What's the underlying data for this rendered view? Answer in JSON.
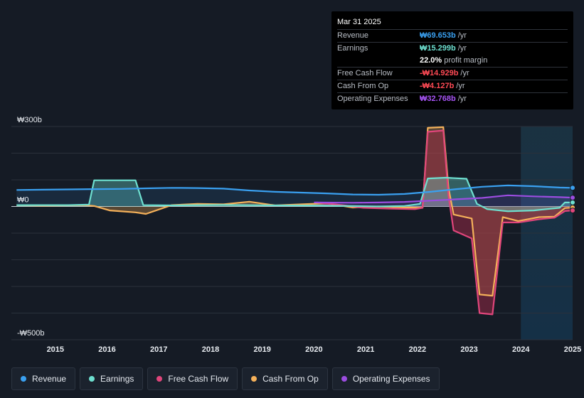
{
  "tooltip": {
    "date": "Mar 31 2025",
    "rows": [
      {
        "label": "Revenue",
        "value": "₩69.653b",
        "unit": "/yr",
        "color": "#3aa0f0"
      },
      {
        "label": "Earnings",
        "value": "₩15.299b",
        "unit": "/yr",
        "color": "#6ee0d0"
      },
      {
        "label": "",
        "value": "22.0%",
        "unit": "profit margin",
        "color": "#ffffff"
      },
      {
        "label": "Free Cash Flow",
        "value": "-₩14.929b",
        "unit": "/yr",
        "color": "#ff4a55"
      },
      {
        "label": "Cash From Op",
        "value": "-₩4.127b",
        "unit": "/yr",
        "color": "#ff4a55"
      },
      {
        "label": "Operating Expenses",
        "value": "₩32.768b",
        "unit": "/yr",
        "color": "#a855f7"
      }
    ]
  },
  "legend": [
    {
      "label": "Revenue",
      "color": "#3aa0f0"
    },
    {
      "label": "Earnings",
      "color": "#6ee0d0"
    },
    {
      "label": "Free Cash Flow",
      "color": "#e0457b"
    },
    {
      "label": "Cash From Op",
      "color": "#f5b15a"
    },
    {
      "label": "Operating Expenses",
      "color": "#9b4de0"
    }
  ],
  "chart_data": {
    "type": "area",
    "ylim": [
      -500,
      300
    ],
    "y_ticks": [
      {
        "value": 300,
        "label": "₩300b"
      },
      {
        "value": 0,
        "label": "₩0"
      },
      {
        "value": -500,
        "label": "-₩500b"
      }
    ],
    "xlim": [
      2014.4,
      2025.25
    ],
    "x_ticks": [
      "2015",
      "2016",
      "2017",
      "2018",
      "2019",
      "2020",
      "2021",
      "2022",
      "2023",
      "2024",
      "2025"
    ],
    "forecast_start": 2024.25,
    "grid": true,
    "series": [
      {
        "name": "Revenue",
        "color": "#3aa0f0",
        "points": [
          [
            2014.5,
            62
          ],
          [
            2015.0,
            63
          ],
          [
            2015.5,
            64
          ],
          [
            2016.0,
            65
          ],
          [
            2016.5,
            66
          ],
          [
            2017.0,
            68
          ],
          [
            2017.5,
            70
          ],
          [
            2018.0,
            69
          ],
          [
            2018.5,
            67
          ],
          [
            2019.0,
            60
          ],
          [
            2019.5,
            55
          ],
          [
            2020.0,
            52
          ],
          [
            2020.5,
            49
          ],
          [
            2021.0,
            45
          ],
          [
            2021.5,
            44
          ],
          [
            2022.0,
            47
          ],
          [
            2022.5,
            55
          ],
          [
            2023.0,
            65
          ],
          [
            2023.5,
            74
          ],
          [
            2024.0,
            79
          ],
          [
            2024.5,
            76
          ],
          [
            2025.0,
            71
          ],
          [
            2025.25,
            70
          ]
        ]
      },
      {
        "name": "Earnings",
        "color": "#6ee0d0",
        "points": [
          [
            2014.5,
            5
          ],
          [
            2015.5,
            5
          ],
          [
            2015.9,
            7
          ],
          [
            2016.0,
            98
          ],
          [
            2016.8,
            98
          ],
          [
            2016.95,
            5
          ],
          [
            2017.5,
            4
          ],
          [
            2018.5,
            6
          ],
          [
            2019.5,
            4
          ],
          [
            2020.5,
            3
          ],
          [
            2021.5,
            0
          ],
          [
            2022.0,
            2
          ],
          [
            2022.3,
            10
          ],
          [
            2022.45,
            105
          ],
          [
            2022.8,
            108
          ],
          [
            2023.2,
            104
          ],
          [
            2023.4,
            10
          ],
          [
            2023.6,
            -10
          ],
          [
            2024.0,
            -18
          ],
          [
            2024.5,
            -15
          ],
          [
            2025.0,
            -5
          ],
          [
            2025.1,
            15
          ],
          [
            2025.25,
            15
          ]
        ]
      },
      {
        "name": "Free Cash Flow",
        "color": "#e0457b",
        "points": [
          [
            2020.3,
            15
          ],
          [
            2020.8,
            5
          ],
          [
            2021.2,
            -5
          ],
          [
            2021.7,
            -8
          ],
          [
            2022.2,
            -10
          ],
          [
            2022.35,
            -5
          ],
          [
            2022.45,
            280
          ],
          [
            2022.75,
            285
          ],
          [
            2022.85,
            40
          ],
          [
            2022.95,
            -90
          ],
          [
            2023.3,
            -120
          ],
          [
            2023.45,
            -400
          ],
          [
            2023.7,
            -405
          ],
          [
            2023.9,
            -60
          ],
          [
            2024.2,
            -60
          ],
          [
            2024.6,
            -48
          ],
          [
            2024.9,
            -42
          ],
          [
            2025.1,
            -17
          ],
          [
            2025.25,
            -15
          ]
        ]
      },
      {
        "name": "Cash From Op",
        "color": "#f5b15a",
        "points": [
          [
            2014.5,
            5
          ],
          [
            2015.0,
            3
          ],
          [
            2015.8,
            5
          ],
          [
            2016.0,
            2
          ],
          [
            2016.3,
            -15
          ],
          [
            2016.8,
            -22
          ],
          [
            2017.0,
            -28
          ],
          [
            2017.5,
            5
          ],
          [
            2018.0,
            10
          ],
          [
            2018.5,
            8
          ],
          [
            2019.0,
            18
          ],
          [
            2019.5,
            4
          ],
          [
            2020.0,
            8
          ],
          [
            2020.5,
            12
          ],
          [
            2021.0,
            -4
          ],
          [
            2021.5,
            0
          ],
          [
            2022.0,
            -4
          ],
          [
            2022.35,
            -5
          ],
          [
            2022.45,
            295
          ],
          [
            2022.75,
            298
          ],
          [
            2022.85,
            70
          ],
          [
            2022.95,
            -30
          ],
          [
            2023.3,
            -45
          ],
          [
            2023.45,
            -330
          ],
          [
            2023.7,
            -335
          ],
          [
            2023.9,
            -40
          ],
          [
            2024.2,
            -55
          ],
          [
            2024.6,
            -40
          ],
          [
            2024.9,
            -38
          ],
          [
            2025.1,
            -6
          ],
          [
            2025.25,
            -4
          ]
        ]
      },
      {
        "name": "Operating Expenses",
        "color": "#9b4de0",
        "points": [
          [
            2020.25,
            15
          ],
          [
            2021.0,
            14
          ],
          [
            2021.5,
            15
          ],
          [
            2022.0,
            17
          ],
          [
            2022.5,
            22
          ],
          [
            2023.0,
            27
          ],
          [
            2023.5,
            32
          ],
          [
            2024.0,
            42
          ],
          [
            2024.5,
            38
          ],
          [
            2025.0,
            35
          ],
          [
            2025.25,
            33
          ]
        ]
      }
    ]
  }
}
